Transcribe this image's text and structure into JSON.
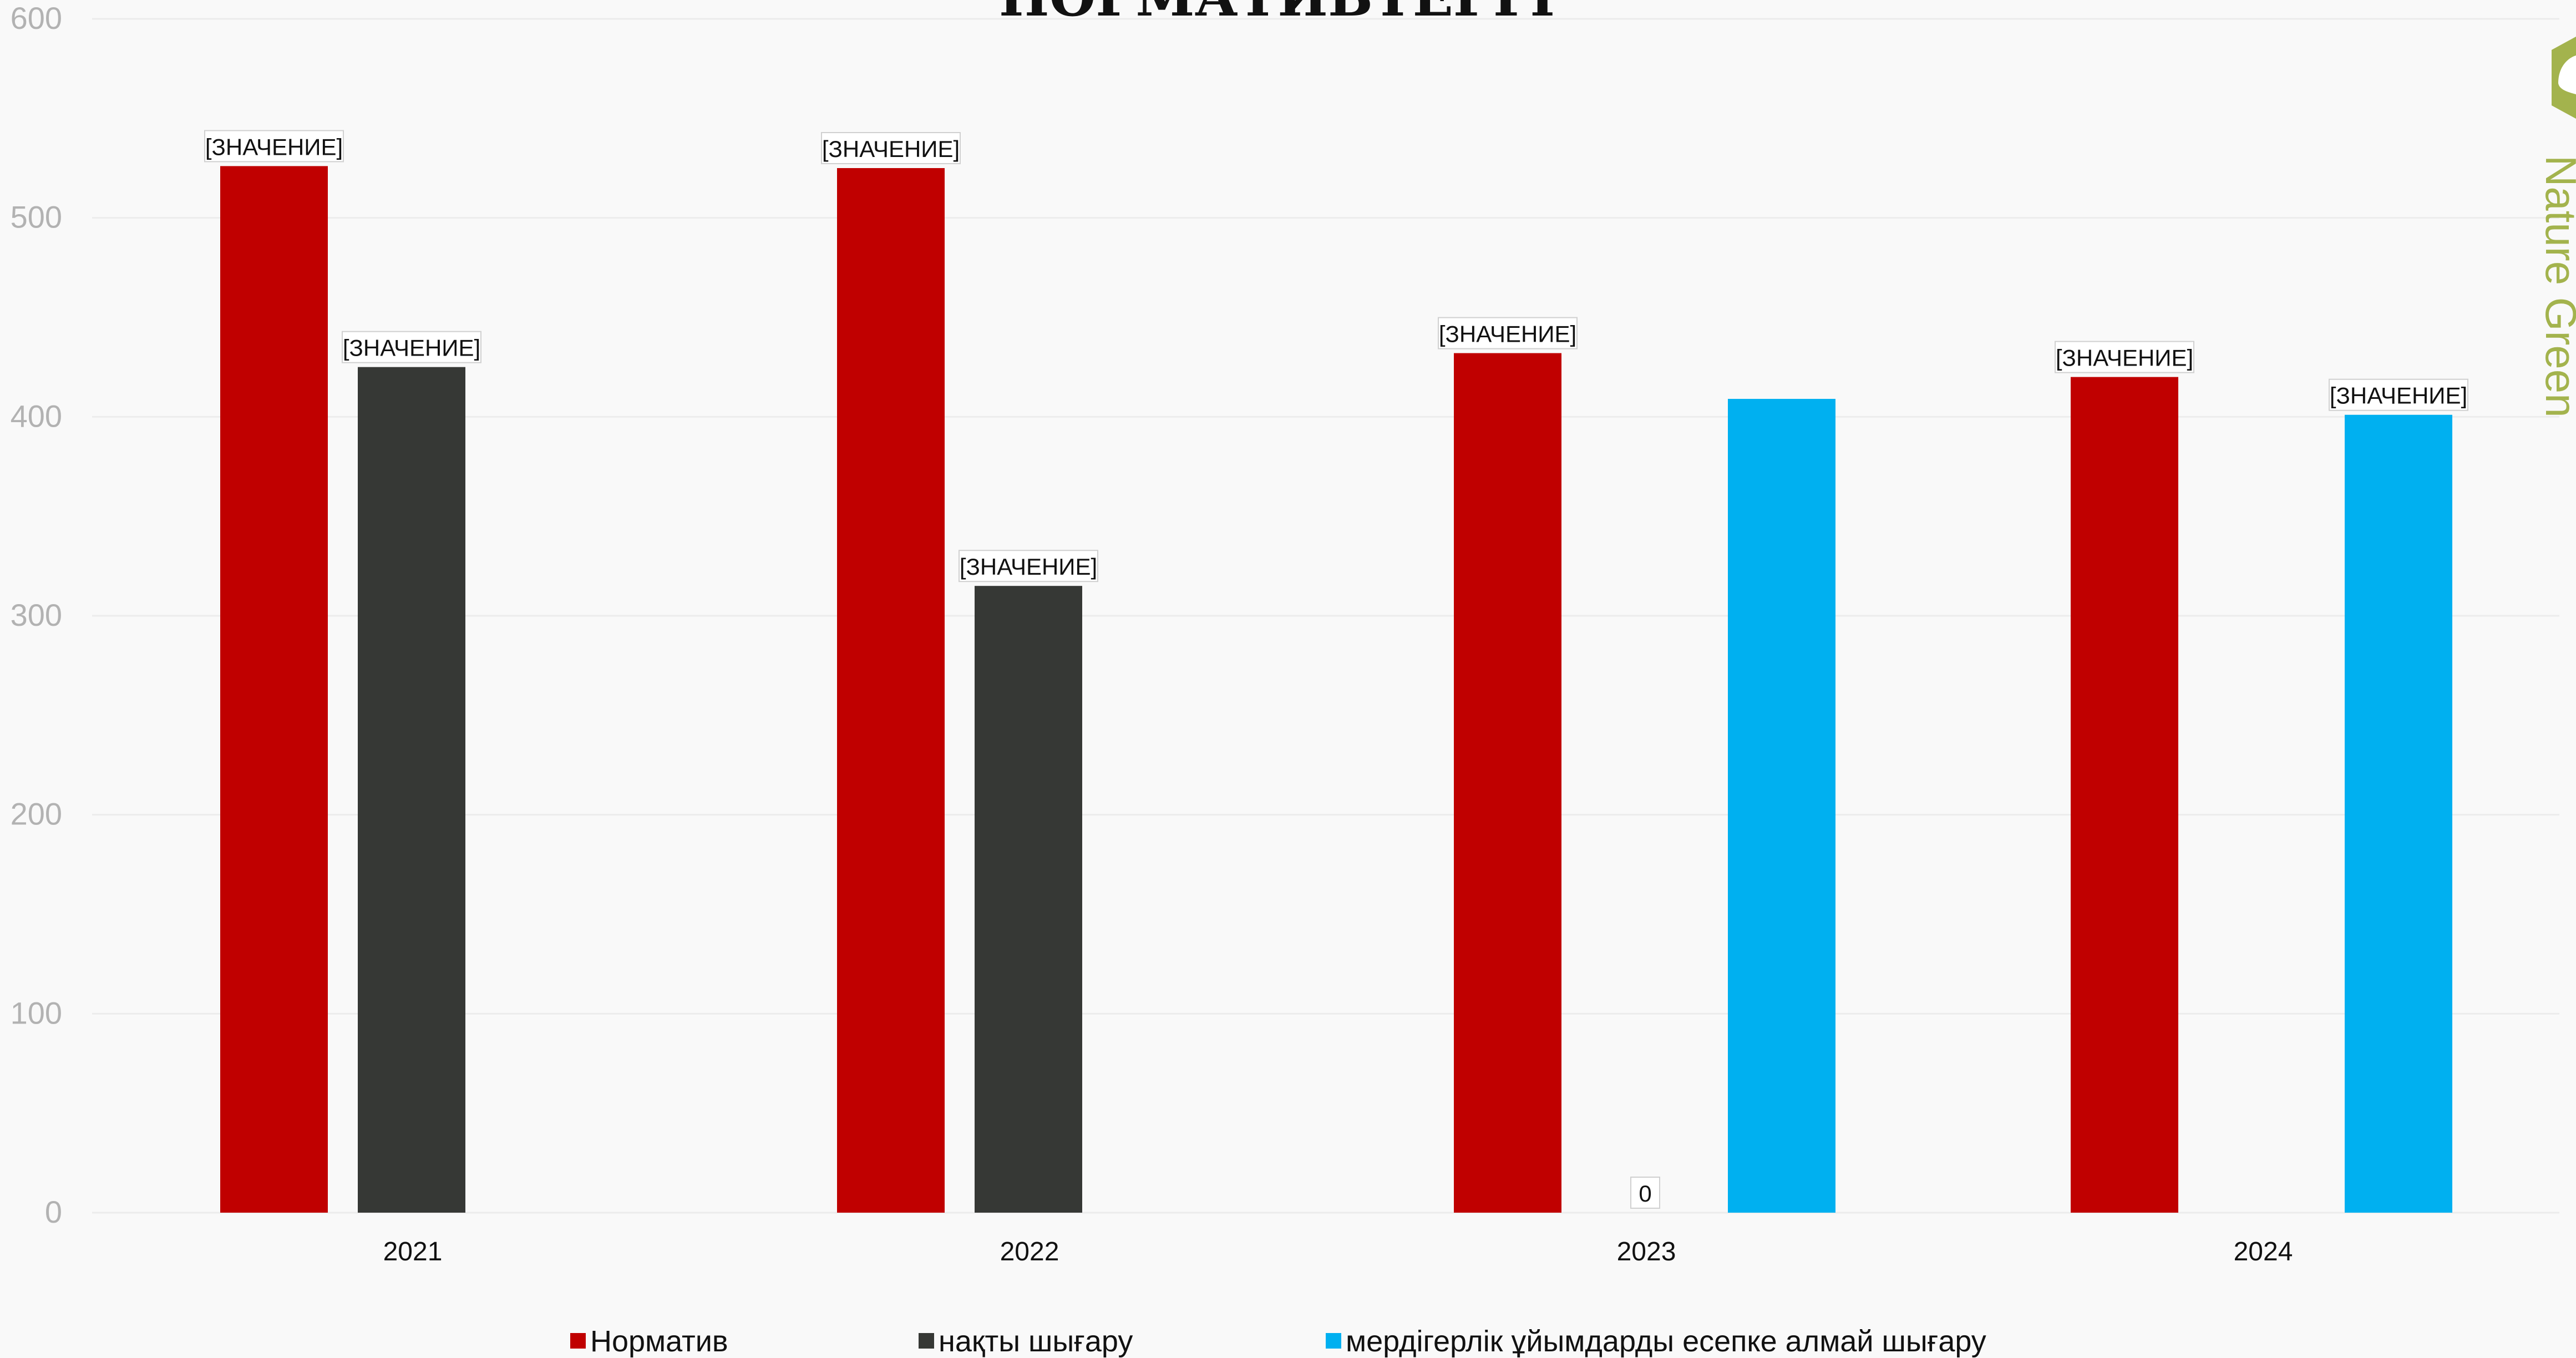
{
  "chart_data": {
    "type": "bar",
    "title": "НОРМАТИВТЕРГІ",
    "categories": [
      "2021",
      "2022",
      "2023",
      "2024"
    ],
    "ylim": [
      0,
      600
    ],
    "yticks": [
      0,
      100,
      200,
      300,
      400,
      500,
      600
    ],
    "grid": true,
    "legend_position": "bottom",
    "series": [
      {
        "name": "Норматив",
        "color": "#c00000",
        "values": [
          526,
          525,
          432,
          420
        ],
        "labels": [
          "[ЗНАЧЕНИЕ]",
          "[ЗНАЧЕНИЕ]",
          "[ЗНАЧЕНИЕ]",
          "[ЗНАЧЕНИЕ]"
        ]
      },
      {
        "name": "нақты шығару",
        "color": "#363835",
        "values": [
          425,
          315,
          0,
          null
        ],
        "labels": [
          "[ЗНАЧЕНИЕ]",
          "[ЗНАЧЕНИЕ]",
          "0",
          null
        ]
      },
      {
        "name": "мердігерлік ұйымдарды есепке алмай шығару",
        "color": "#00b0f0",
        "values": [
          null,
          null,
          409,
          401
        ],
        "labels": [
          null,
          null,
          null,
          "[ЗНАЧЕНИЕ]"
        ]
      }
    ]
  },
  "brand": {
    "text": "Nature Green",
    "color": "#a3b34d"
  }
}
